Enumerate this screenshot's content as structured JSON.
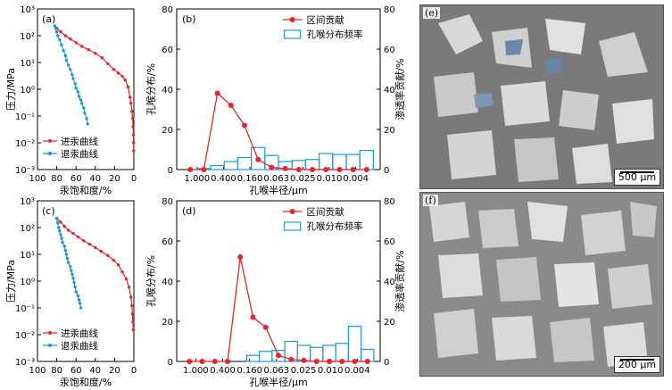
{
  "chart_data": [
    {
      "id": "a",
      "panel_label": "(a)",
      "type": "line",
      "ylabel": "压力/MPa",
      "xlabel": "汞饱和度/%",
      "xlim": [
        100,
        0
      ],
      "ylim": [
        0.001,
        1000
      ],
      "yscale": "log",
      "x_ticks": [
        "100",
        "80",
        "60",
        "40",
        "20",
        "0"
      ],
      "y_ticks": [
        "10⁻³",
        "10⁻²",
        "10⁻¹",
        "10⁰",
        "10¹",
        "10²",
        "10³"
      ],
      "legend": [
        "进汞曲线",
        "退汞曲线"
      ],
      "series": [
        {
          "name": "进汞曲线",
          "color": "#e8232a",
          "x": [
            0.2,
            0.3,
            0.5,
            0.8,
            1.2,
            2,
            3,
            4,
            6,
            9,
            12,
            16,
            21,
            27,
            33,
            40,
            47,
            54,
            60,
            66,
            71,
            76,
            80,
            82
          ],
          "y": [
            0.005,
            0.01,
            0.02,
            0.04,
            0.08,
            0.15,
            0.3,
            0.5,
            1.2,
            2.2,
            3,
            4,
            5.5,
            9,
            15,
            22,
            30,
            40,
            55,
            75,
            100,
            140,
            190,
            230
          ]
        },
        {
          "name": "退汞曲线",
          "color": "#1a9ad9",
          "x": [
            82,
            81,
            80,
            79,
            77,
            75,
            73,
            71,
            70,
            68,
            66,
            64,
            63,
            61,
            60,
            58,
            57,
            55,
            54,
            52,
            51,
            49,
            48
          ],
          "y": [
            230,
            190,
            140,
            100,
            70,
            45,
            28,
            18,
            12,
            8,
            5.5,
            3.5,
            2.5,
            1.6,
            1.1,
            0.8,
            0.55,
            0.4,
            0.3,
            0.2,
            0.13,
            0.08,
            0.05
          ]
        }
      ]
    },
    {
      "id": "b",
      "panel_label": "(b)",
      "type": "bar+line",
      "ylabel": "孔喉分布/%",
      "y2label": "渗透率贡献/%",
      "xlabel": "孔喉半径/μm",
      "ylim": [
        0,
        80
      ],
      "y2lim": [
        0,
        80
      ],
      "y_ticks": [
        0,
        20,
        40,
        60,
        80
      ],
      "y2_ticks": [
        0,
        20,
        40,
        60,
        80
      ],
      "x_tick_labels": [
        "1.000",
        "0.400",
        "0.160",
        "0.063",
        "0.025",
        "0.010",
        "0.004"
      ],
      "legend": [
        "区间贡献",
        "孔喉分布频率"
      ],
      "bars": {
        "name": "孔喉分布频率",
        "color": "#1a9ad9",
        "values": [
          0,
          0.5,
          2,
          4,
          6,
          11,
          7,
          4,
          4.5,
          5,
          8,
          7.5,
          7.5,
          9.5
        ]
      },
      "line": {
        "name": "区间贡献",
        "color": "#e8232a",
        "values": [
          0,
          0,
          38,
          32,
          22,
          5,
          1,
          0.5,
          0,
          0,
          0,
          0,
          0,
          0
        ]
      }
    },
    {
      "id": "c",
      "panel_label": "(c)",
      "type": "line",
      "ylabel": "压力/MPa",
      "xlabel": "汞饱和度/%",
      "xlim": [
        100,
        0
      ],
      "ylim": [
        0.001,
        1000
      ],
      "yscale": "log",
      "x_ticks": [
        "100",
        "80",
        "60",
        "40",
        "20",
        "0"
      ],
      "y_ticks": [
        "10⁻³",
        "10⁻²",
        "10⁻¹",
        "10⁰",
        "10¹",
        "10²",
        "10³"
      ],
      "legend": [
        "进汞曲线",
        "退汞曲线"
      ],
      "series": [
        {
          "name": "进汞曲线",
          "color": "#e8232a",
          "x": [
            0.5,
            1,
            1.5,
            2,
            3,
            5,
            8,
            12,
            16,
            21,
            27,
            34,
            40,
            46,
            52,
            58,
            63,
            68,
            72,
            76,
            80
          ],
          "y": [
            0.015,
            0.03,
            0.06,
            0.12,
            0.25,
            0.6,
            1.2,
            2.2,
            4,
            6,
            9,
            13,
            18,
            24,
            32,
            45,
            60,
            80,
            110,
            160,
            220
          ]
        },
        {
          "name": "退汞曲线",
          "color": "#1a9ad9",
          "x": [
            80,
            79,
            78,
            77,
            76,
            75,
            74,
            72,
            71,
            70,
            69,
            68,
            66,
            65,
            64,
            63,
            62,
            61,
            60,
            58,
            57,
            56,
            55
          ],
          "y": [
            220,
            150,
            100,
            75,
            55,
            40,
            28,
            20,
            14,
            10,
            7,
            5,
            3.5,
            2.5,
            1.8,
            1.3,
            0.9,
            0.6,
            0.4,
            0.28,
            0.2,
            0.15,
            0.1
          ]
        }
      ]
    },
    {
      "id": "d",
      "panel_label": "(d)",
      "type": "bar+line",
      "ylabel": "孔喉分布/%",
      "y2label": "渗透率贡献/%",
      "xlabel": "孔喉半径/μm",
      "ylim": [
        0,
        80
      ],
      "y2lim": [
        0,
        80
      ],
      "y_ticks": [
        0,
        20,
        40,
        60,
        80
      ],
      "y2_ticks": [
        0,
        20,
        40,
        60,
        80
      ],
      "x_tick_labels": [
        "1.000",
        "0.400",
        "0.160",
        "0.063",
        "0.025",
        "0.010",
        "0.004"
      ],
      "legend": [
        "区间贡献",
        "孔喉分布频率"
      ],
      "bars": {
        "name": "孔喉分布频率",
        "color": "#1a9ad9",
        "values": [
          0,
          0,
          0,
          0,
          0,
          3,
          5,
          5.5,
          10,
          8,
          7,
          8,
          9,
          17.5,
          6
        ]
      },
      "line": {
        "name": "区间贡献",
        "color": "#e8232a",
        "values": [
          0,
          0,
          0,
          0,
          52,
          22,
          17,
          3,
          1,
          0.5,
          0,
          0,
          0,
          0,
          0
        ]
      }
    }
  ],
  "micrographs": [
    {
      "panel_label": "(e)",
      "scale_label": "500 μm"
    },
    {
      "panel_label": "(f)",
      "scale_label": "200 μm"
    }
  ]
}
